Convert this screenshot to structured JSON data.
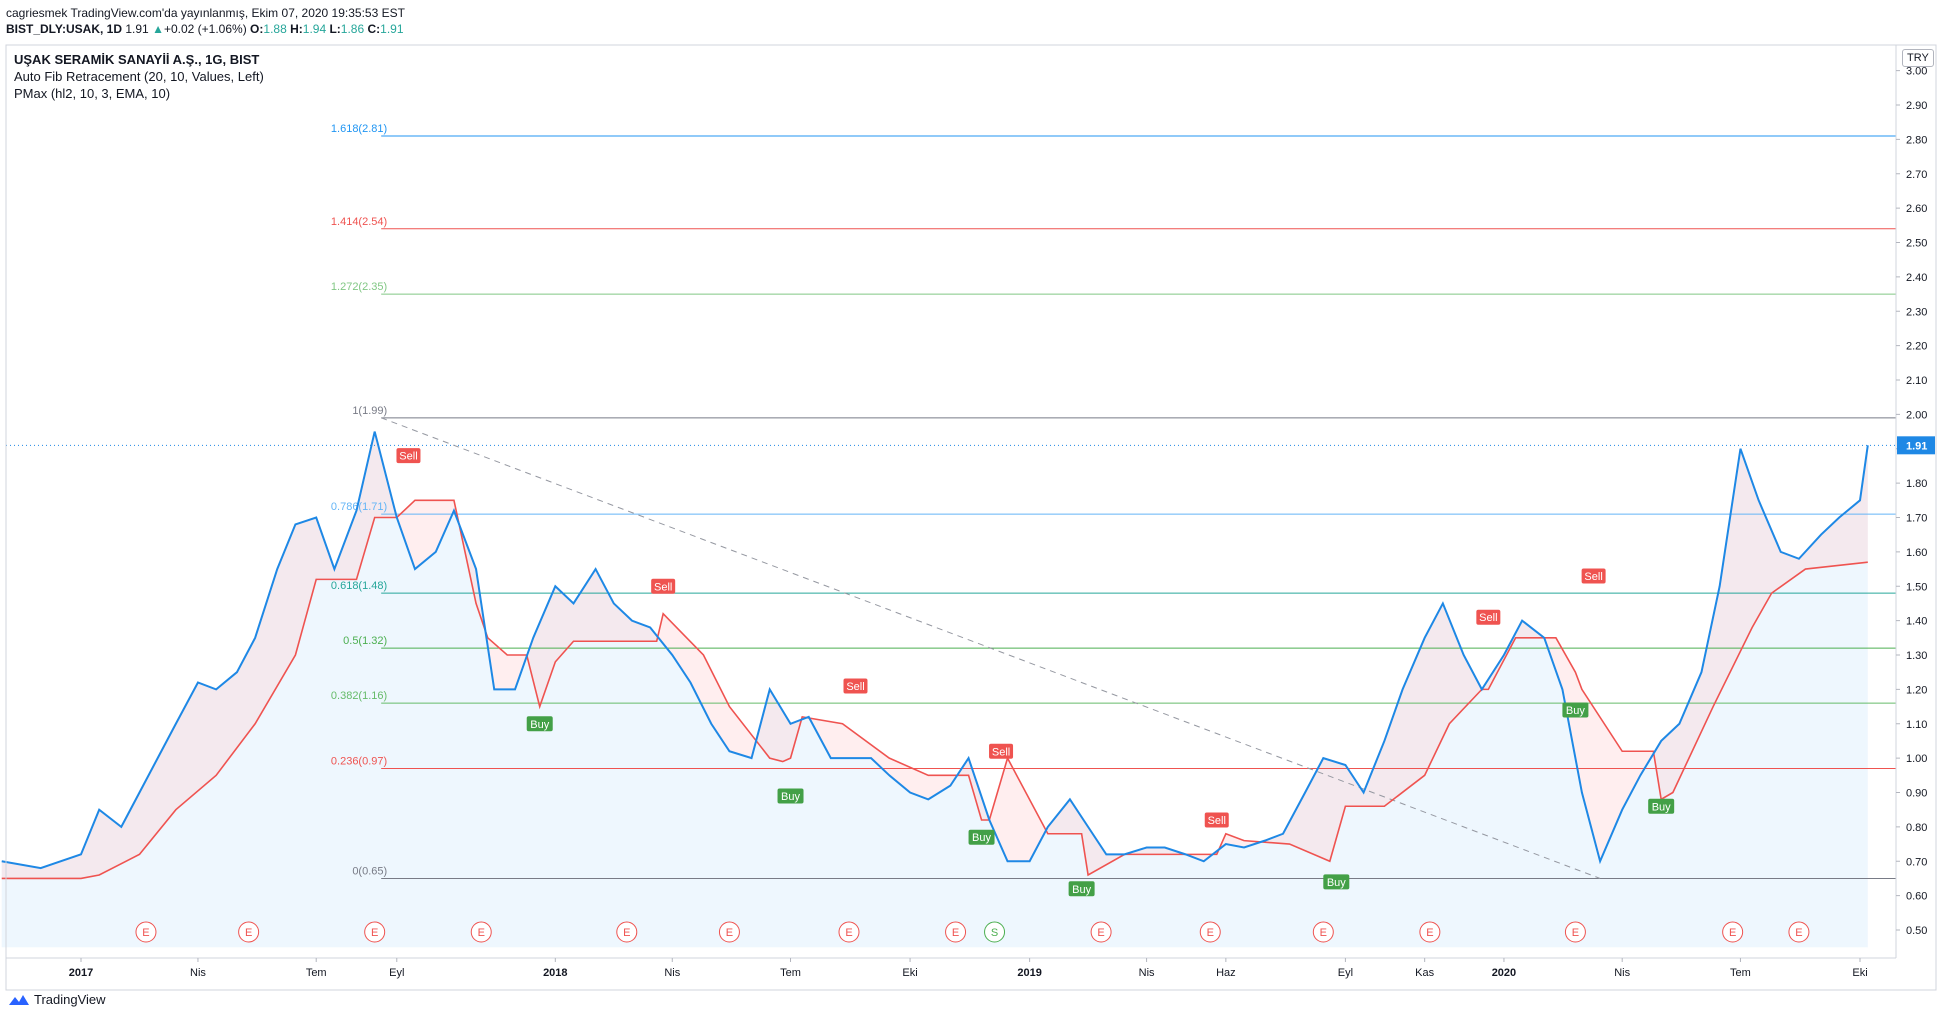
{
  "header": {
    "line1": "cagriesmek TradingView.com'da yayınlanmış, Ekim 07, 2020 19:35:53 EST",
    "symbol": "BIST_DLY:USAK, 1D",
    "last": "1.91",
    "change": "+0.02 (+1.06%)",
    "o_label": "O:",
    "o": "1.88",
    "h_label": "H:",
    "h": "1.94",
    "l_label": "L:",
    "l": "1.86",
    "c_label": "C:",
    "c": "1.91"
  },
  "legend": {
    "title": "UŞAK SERAMİK SANAYİİ A.Ş., 1G, BIST",
    "fib": "Auto Fib Retracement (20, 10, Values, Left)",
    "pmax": "PMax (hl2, 10, 3, EMA, 10)"
  },
  "currency_button": "TRY",
  "brand": "TradingView",
  "colors": {
    "price": "#1e88e5",
    "pmax": "#ef5350",
    "fib_1618": "#2196f3",
    "fib_1414": "#ef5350",
    "fib_1272": "#81c784",
    "fib_1": "#787b86",
    "fib_0786": "#64b5f6",
    "fib_0618": "#26a69a",
    "fib_05": "#4caf50",
    "fib_0382": "#66bb6a",
    "fib_0236": "#ef5350",
    "fib_0": "#787b86",
    "buy": "#43a047",
    "sell": "#ef5350"
  },
  "chart_data": {
    "type": "line",
    "title": "UŞAK SERAMİK SANAYİİ A.Ş., 1G, BIST",
    "ylim": [
      0.45,
      3.0
    ],
    "y_ticks": [
      "0.50",
      "0.60",
      "0.70",
      "0.80",
      "0.90",
      "1.00",
      "1.10",
      "1.20",
      "1.30",
      "1.40",
      "1.50",
      "1.60",
      "1.70",
      "1.80",
      "1.90",
      "2.00",
      "2.10",
      "2.20",
      "2.30",
      "2.40",
      "2.50",
      "2.60",
      "2.70",
      "2.80",
      "2.90",
      "3.00"
    ],
    "x_range": [
      "2016-11",
      "2020-10"
    ],
    "x_ticks": [
      {
        "label": "2017",
        "date": "2017-01",
        "bold": true
      },
      {
        "label": "Nis",
        "date": "2017-04"
      },
      {
        "label": "Tem",
        "date": "2017-07"
      },
      {
        "label": "Eyl",
        "date": "2017-09"
      },
      {
        "label": "2018",
        "date": "2018-01",
        "bold": true
      },
      {
        "label": "Nis",
        "date": "2018-04"
      },
      {
        "label": "Tem",
        "date": "2018-07"
      },
      {
        "label": "Eki",
        "date": "2018-10"
      },
      {
        "label": "2019",
        "date": "2019-01",
        "bold": true
      },
      {
        "label": "Nis",
        "date": "2019-04"
      },
      {
        "label": "Haz",
        "date": "2019-06"
      },
      {
        "label": "Eyl",
        "date": "2019-09"
      },
      {
        "label": "Kas",
        "date": "2019-11"
      },
      {
        "label": "2020",
        "date": "2020-01",
        "bold": true
      },
      {
        "label": "Nis",
        "date": "2020-04"
      },
      {
        "label": "Tem",
        "date": "2020-07"
      },
      {
        "label": "Eki",
        "date": "2020-10"
      }
    ],
    "current_price": {
      "value": 1.91,
      "label": "1.91"
    },
    "fib_levels": [
      {
        "label": "1.618(2.81)",
        "value": 2.81,
        "color_key": "fib_1618"
      },
      {
        "label": "1.414(2.54)",
        "value": 2.54,
        "color_key": "fib_1414"
      },
      {
        "label": "1.272(2.35)",
        "value": 2.35,
        "color_key": "fib_1272"
      },
      {
        "label": "1(1.99)",
        "value": 1.99,
        "color_key": "fib_1"
      },
      {
        "label": "0.786(1.71)",
        "value": 1.71,
        "color_key": "fib_0786"
      },
      {
        "label": "0.618(1.48)",
        "value": 1.48,
        "color_key": "fib_0618"
      },
      {
        "label": "0.5(1.32)",
        "value": 1.32,
        "color_key": "fib_05"
      },
      {
        "label": "0.382(1.16)",
        "value": 1.16,
        "color_key": "fib_0382"
      },
      {
        "label": "0.236(0.97)",
        "value": 0.97,
        "color_key": "fib_0236"
      },
      {
        "label": "0(0.65)",
        "value": 0.65,
        "color_key": "fib_0"
      }
    ],
    "trend_line": {
      "from": [
        "2017-08-20",
        1.99
      ],
      "to": [
        "2020-03-15",
        0.65
      ]
    },
    "series": [
      {
        "name": "Price",
        "x": [
          "2016-11-01",
          "2016-12-01",
          "2017-01-01",
          "2017-01-15",
          "2017-02-01",
          "2017-02-15",
          "2017-03-01",
          "2017-03-15",
          "2017-04-01",
          "2017-04-15",
          "2017-05-01",
          "2017-05-15",
          "2017-06-01",
          "2017-06-15",
          "2017-07-01",
          "2017-07-15",
          "2017-08-01",
          "2017-08-15",
          "2017-09-01",
          "2017-09-15",
          "2017-10-01",
          "2017-10-15",
          "2017-11-01",
          "2017-11-15",
          "2017-12-01",
          "2017-12-15",
          "2018-01-01",
          "2018-01-15",
          "2018-02-01",
          "2018-02-15",
          "2018-03-01",
          "2018-03-15",
          "2018-04-01",
          "2018-04-15",
          "2018-05-01",
          "2018-05-15",
          "2018-06-01",
          "2018-06-15",
          "2018-07-01",
          "2018-07-15",
          "2018-08-01",
          "2018-08-15",
          "2018-09-01",
          "2018-09-15",
          "2018-10-01",
          "2018-10-15",
          "2018-11-01",
          "2018-11-15",
          "2018-12-01",
          "2018-12-15",
          "2019-01-01",
          "2019-01-15",
          "2019-02-01",
          "2019-02-15",
          "2019-03-01",
          "2019-03-15",
          "2019-04-01",
          "2019-04-15",
          "2019-05-01",
          "2019-05-15",
          "2019-06-01",
          "2019-06-15",
          "2019-07-01",
          "2019-07-15",
          "2019-08-01",
          "2019-08-15",
          "2019-09-01",
          "2019-09-15",
          "2019-10-01",
          "2019-10-15",
          "2019-11-01",
          "2019-11-15",
          "2019-12-01",
          "2019-12-15",
          "2020-01-01",
          "2020-01-15",
          "2020-02-01",
          "2020-02-15",
          "2020-03-01",
          "2020-03-15",
          "2020-04-01",
          "2020-04-15",
          "2020-05-01",
          "2020-05-15",
          "2020-06-01",
          "2020-06-15",
          "2020-07-01",
          "2020-07-15",
          "2020-08-01",
          "2020-08-15",
          "2020-09-01",
          "2020-09-15",
          "2020-10-01",
          "2020-10-07"
        ],
        "values": [
          0.7,
          0.68,
          0.72,
          0.85,
          0.8,
          0.9,
          1.0,
          1.1,
          1.22,
          1.2,
          1.25,
          1.35,
          1.55,
          1.68,
          1.7,
          1.55,
          1.72,
          1.95,
          1.7,
          1.55,
          1.6,
          1.72,
          1.55,
          1.2,
          1.2,
          1.35,
          1.5,
          1.45,
          1.55,
          1.45,
          1.4,
          1.38,
          1.3,
          1.22,
          1.1,
          1.02,
          1.0,
          1.2,
          1.1,
          1.12,
          1.0,
          1.0,
          1.0,
          0.95,
          0.9,
          0.88,
          0.92,
          1.0,
          0.82,
          0.7,
          0.7,
          0.8,
          0.88,
          0.8,
          0.72,
          0.72,
          0.74,
          0.74,
          0.72,
          0.7,
          0.75,
          0.74,
          0.76,
          0.78,
          0.9,
          1.0,
          0.98,
          0.9,
          1.05,
          1.2,
          1.35,
          1.45,
          1.3,
          1.2,
          1.3,
          1.4,
          1.35,
          1.2,
          0.9,
          0.7,
          0.85,
          0.95,
          1.05,
          1.1,
          1.25,
          1.5,
          1.9,
          1.75,
          1.6,
          1.58,
          1.65,
          1.7,
          1.75,
          1.91
        ]
      },
      {
        "name": "PMax",
        "x": [
          "2016-11-01",
          "2017-01-01",
          "2017-01-15",
          "2017-02-15",
          "2017-03-15",
          "2017-04-15",
          "2017-05-15",
          "2017-06-15",
          "2017-07-01",
          "2017-08-01",
          "2017-08-15",
          "2017-09-01",
          "2017-09-15",
          "2017-10-15",
          "2017-11-01",
          "2017-11-10",
          "2017-11-25",
          "2017-12-10",
          "2017-12-20",
          "2018-01-01",
          "2018-01-15",
          "2018-02-15",
          "2018-03-15",
          "2018-03-20",
          "2018-03-25",
          "2018-04-25",
          "2018-05-15",
          "2018-06-15",
          "2018-06-25",
          "2018-07-01",
          "2018-07-10",
          "2018-08-10",
          "2018-09-15",
          "2018-10-15",
          "2018-11-15",
          "2018-11-25",
          "2018-12-01",
          "2018-12-15",
          "2019-01-15",
          "2019-02-10",
          "2019-02-15",
          "2019-03-15",
          "2019-04-20",
          "2019-05-25",
          "2019-06-01",
          "2019-06-15",
          "2019-07-20",
          "2019-08-20",
          "2019-09-01",
          "2019-10-01",
          "2019-11-01",
          "2019-11-20",
          "2019-12-15",
          "2019-12-20",
          "2020-01-10",
          "2020-02-10",
          "2020-02-25",
          "2020-03-01",
          "2020-04-01",
          "2020-04-25",
          "2020-05-01",
          "2020-05-10",
          "2020-06-10",
          "2020-07-10",
          "2020-07-25",
          "2020-08-20",
          "2020-10-07"
        ],
        "values": [
          0.65,
          0.65,
          0.66,
          0.72,
          0.85,
          0.95,
          1.1,
          1.3,
          1.52,
          1.52,
          1.7,
          1.7,
          1.75,
          1.75,
          1.45,
          1.35,
          1.3,
          1.3,
          1.15,
          1.28,
          1.34,
          1.34,
          1.34,
          1.34,
          1.42,
          1.3,
          1.15,
          1.0,
          0.99,
          1.0,
          1.12,
          1.1,
          1.0,
          0.95,
          0.95,
          0.82,
          0.82,
          1.0,
          0.78,
          0.78,
          0.66,
          0.72,
          0.72,
          0.72,
          0.78,
          0.76,
          0.75,
          0.7,
          0.86,
          0.86,
          0.95,
          1.1,
          1.2,
          1.2,
          1.35,
          1.35,
          1.25,
          1.2,
          1.02,
          1.02,
          0.88,
          0.9,
          1.15,
          1.38,
          1.48,
          1.55,
          1.57
        ]
      }
    ],
    "signals": [
      {
        "label": "Sell",
        "date": "2017-09-10",
        "value": 1.88,
        "type": "sell"
      },
      {
        "label": "Buy",
        "date": "2017-12-20",
        "value": 1.1,
        "type": "buy"
      },
      {
        "label": "Sell",
        "date": "2018-03-25",
        "value": 1.5,
        "type": "sell"
      },
      {
        "label": "Buy",
        "date": "2018-07-01",
        "value": 0.89,
        "type": "buy"
      },
      {
        "label": "Sell",
        "date": "2018-08-20",
        "value": 1.21,
        "type": "sell"
      },
      {
        "label": "Buy",
        "date": "2018-11-25",
        "value": 0.77,
        "type": "buy"
      },
      {
        "label": "Sell",
        "date": "2018-12-10",
        "value": 1.02,
        "type": "sell"
      },
      {
        "label": "Buy",
        "date": "2019-02-10",
        "value": 0.62,
        "type": "buy"
      },
      {
        "label": "Sell",
        "date": "2019-05-25",
        "value": 0.82,
        "type": "sell"
      },
      {
        "label": "Buy",
        "date": "2019-08-25",
        "value": 0.64,
        "type": "buy"
      },
      {
        "label": "Sell",
        "date": "2019-12-20",
        "value": 1.41,
        "type": "sell"
      },
      {
        "label": "Buy",
        "date": "2020-02-25",
        "value": 1.14,
        "type": "buy"
      },
      {
        "label": "Sell",
        "date": "2020-03-10",
        "value": 1.53,
        "type": "sell"
      },
      {
        "label": "Buy",
        "date": "2020-05-01",
        "value": 0.86,
        "type": "buy"
      }
    ],
    "events": [
      {
        "label": "E",
        "date": "2017-02-20"
      },
      {
        "label": "E",
        "date": "2017-05-10"
      },
      {
        "label": "E",
        "date": "2017-08-15"
      },
      {
        "label": "E",
        "date": "2017-11-05"
      },
      {
        "label": "E",
        "date": "2018-02-25"
      },
      {
        "label": "E",
        "date": "2018-05-15"
      },
      {
        "label": "E",
        "date": "2018-08-15"
      },
      {
        "label": "E",
        "date": "2018-11-05"
      },
      {
        "label": "S",
        "date": "2018-12-05",
        "type": "split"
      },
      {
        "label": "E",
        "date": "2019-02-25"
      },
      {
        "label": "E",
        "date": "2019-05-20"
      },
      {
        "label": "E",
        "date": "2019-08-15"
      },
      {
        "label": "E",
        "date": "2019-11-05"
      },
      {
        "label": "E",
        "date": "2020-02-25"
      },
      {
        "label": "E",
        "date": "2020-06-25"
      },
      {
        "label": "E",
        "date": "2020-08-15"
      }
    ]
  }
}
